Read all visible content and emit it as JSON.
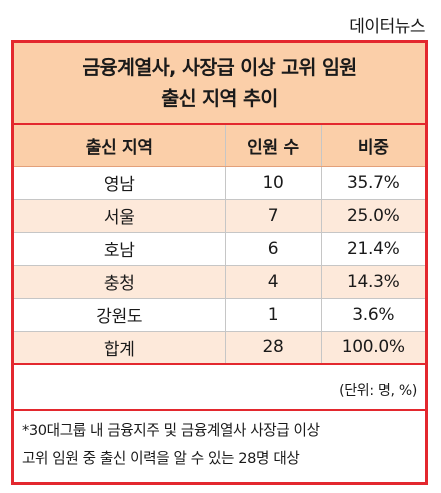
{
  "source": "데이터뉴스",
  "title_line1": "금융계열사, 사장급 이상 고위 임원",
  "title_line2": "출신 지역 추이",
  "headers": [
    "출신 지역",
    "인원 수",
    "비중"
  ],
  "rows": [
    [
      "영남",
      "10",
      "35.7%"
    ],
    [
      "서울",
      "7",
      "25.0%"
    ],
    [
      "호남",
      "6",
      "21.4%"
    ],
    [
      "충청",
      "4",
      "14.3%"
    ],
    [
      "강원도",
      "1",
      "3.6%"
    ],
    [
      "합계",
      "28",
      "100.0%"
    ]
  ],
  "unit": "(단위: 명, %)",
  "note_line1": "*30대그룹 내 금융지주 및 금융계열사 사장급 이상",
  "note_line2": "고위 임원 중 출신 이력을 알 수 있는 28명 대상",
  "colors": {
    "accent": "#e3282e",
    "header_fill": "#fbcfa9",
    "shade_fill": "#fde9da"
  }
}
